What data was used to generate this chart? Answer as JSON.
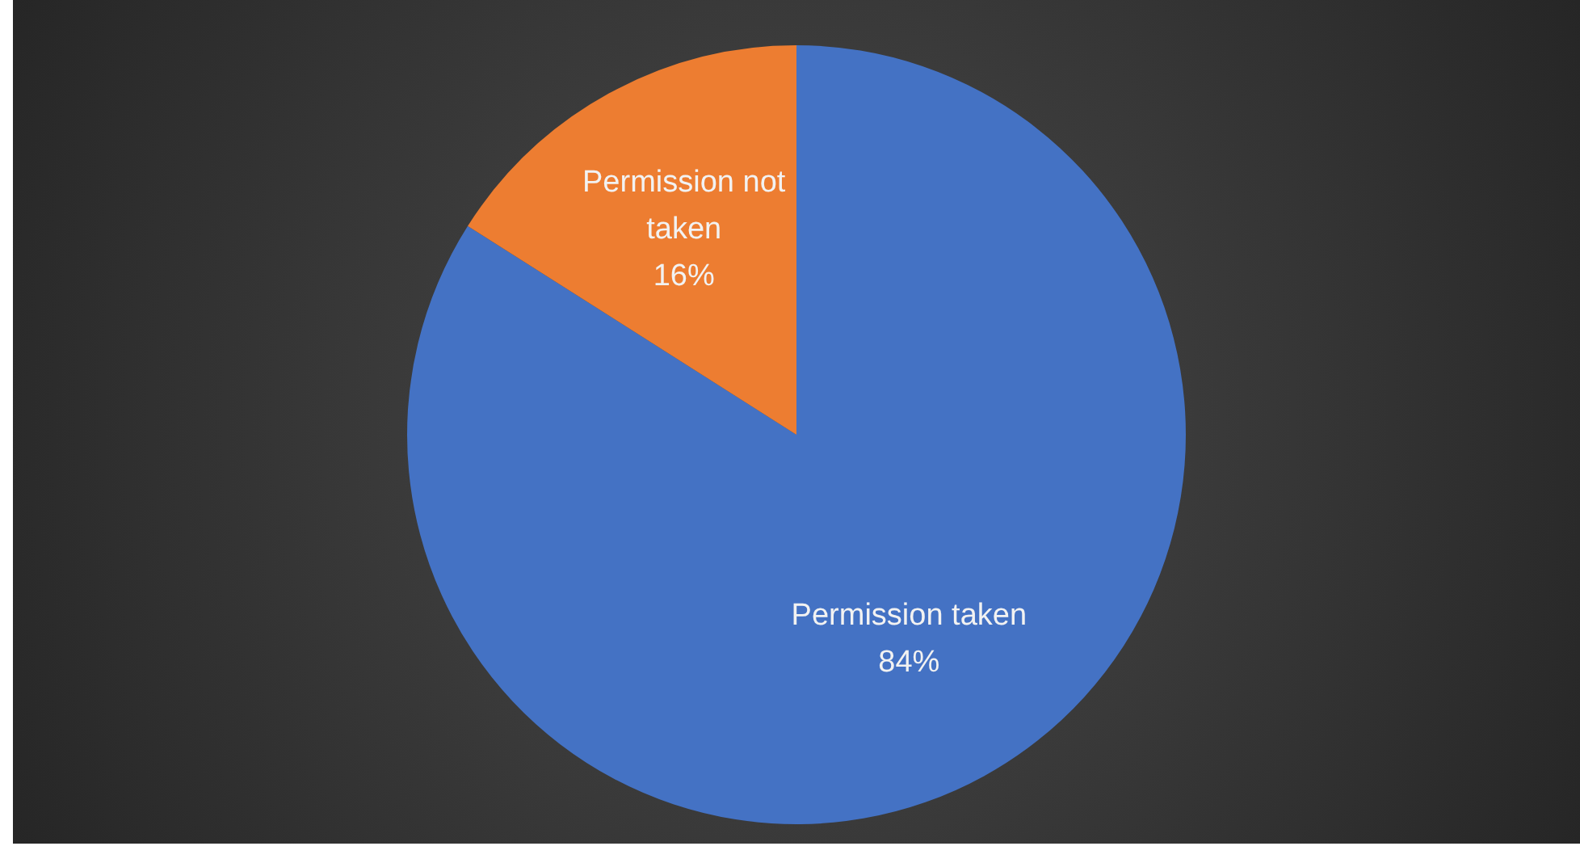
{
  "chart_data": {
    "type": "pie",
    "categories": [
      "Permission taken",
      "Permission not taken"
    ],
    "values": [
      84,
      16
    ],
    "colors": [
      "#4472c4",
      "#ed7d31"
    ],
    "value_labels": [
      "84%",
      "16%"
    ],
    "legend": false
  }
}
